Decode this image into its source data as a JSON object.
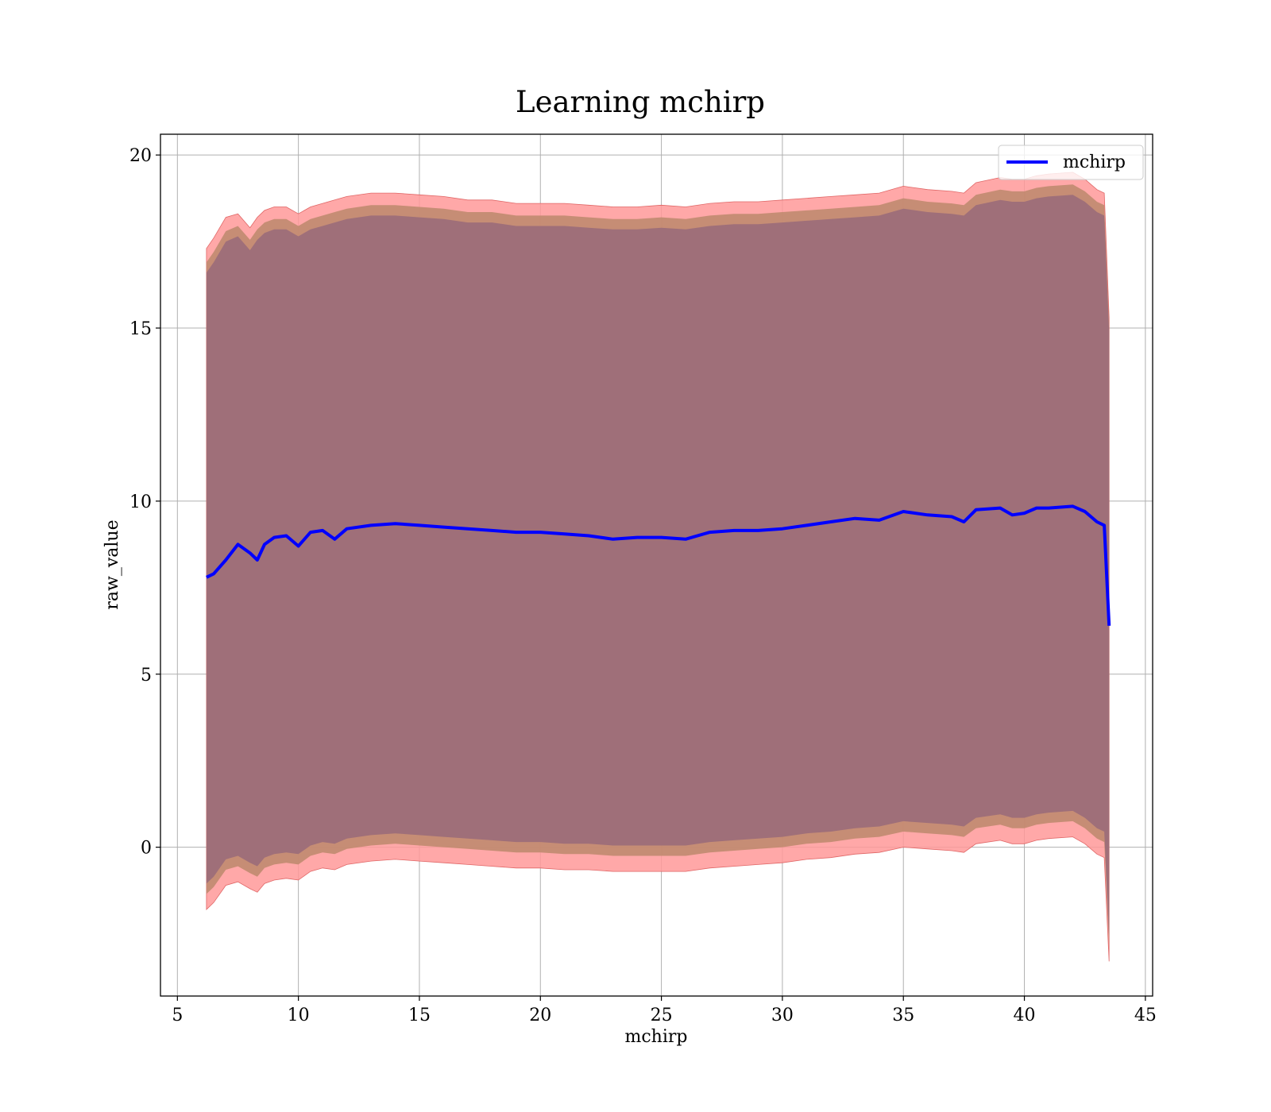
{
  "chart_data": {
    "type": "line",
    "title": "Learning mchirp",
    "xlabel": "mchirp",
    "ylabel": "raw_value",
    "xlim": [
      4.3,
      45.3
    ],
    "ylim": [
      -4.3,
      20.6
    ],
    "xticks": [
      5,
      10,
      15,
      20,
      25,
      30,
      35,
      40,
      45
    ],
    "yticks": [
      0,
      5,
      10,
      15,
      20
    ],
    "grid": true,
    "legend": {
      "placement": "top-right",
      "entries": [
        "mchirp"
      ]
    },
    "colors": {
      "line": "#0000ff",
      "outer_band": "#ff9999",
      "mid_band": "#c08a6f",
      "inner_band": "#9f6f79",
      "grid": "#b0b0b0"
    },
    "series": [
      {
        "name": "mchirp",
        "x": [
          6.2,
          6.5,
          7.0,
          7.5,
          8.0,
          8.3,
          8.6,
          9.0,
          9.5,
          10.0,
          10.5,
          11.0,
          11.5,
          12.0,
          13.0,
          14.0,
          15.0,
          16.0,
          17.0,
          18.0,
          19.0,
          20.0,
          21.0,
          22.0,
          23.0,
          24.0,
          25.0,
          26.0,
          27.0,
          28.0,
          29.0,
          30.0,
          31.0,
          32.0,
          33.0,
          34.0,
          35.0,
          36.0,
          37.0,
          37.5,
          38.0,
          39.0,
          39.5,
          40.0,
          40.5,
          41.0,
          42.0,
          42.5,
          43.0,
          43.3,
          43.5
        ],
        "y": [
          7.8,
          7.9,
          8.3,
          8.75,
          8.5,
          8.3,
          8.75,
          8.95,
          9.0,
          8.7,
          9.1,
          9.15,
          8.9,
          9.2,
          9.3,
          9.35,
          9.3,
          9.25,
          9.2,
          9.15,
          9.1,
          9.1,
          9.05,
          9.0,
          8.9,
          8.95,
          8.95,
          8.9,
          9.1,
          9.15,
          9.15,
          9.2,
          9.3,
          9.4,
          9.5,
          9.45,
          9.7,
          9.6,
          9.55,
          9.4,
          9.75,
          9.8,
          9.6,
          9.65,
          9.8,
          9.8,
          9.85,
          9.7,
          9.4,
          9.3,
          6.4
        ],
        "band_outer": {
          "upper": [
            17.3,
            17.6,
            18.2,
            18.3,
            17.9,
            18.2,
            18.4,
            18.5,
            18.5,
            18.3,
            18.5,
            18.6,
            18.7,
            18.8,
            18.9,
            18.9,
            18.85,
            18.8,
            18.7,
            18.7,
            18.6,
            18.6,
            18.6,
            18.55,
            18.5,
            18.5,
            18.55,
            18.5,
            18.6,
            18.65,
            18.65,
            18.7,
            18.75,
            18.8,
            18.85,
            18.9,
            19.1,
            19.0,
            18.95,
            18.9,
            19.2,
            19.35,
            19.3,
            19.3,
            19.4,
            19.45,
            19.5,
            19.3,
            19.0,
            18.9,
            15.3
          ],
          "lower": [
            -1.8,
            -1.6,
            -1.1,
            -1.0,
            -1.2,
            -1.3,
            -1.05,
            -0.95,
            -0.9,
            -0.95,
            -0.7,
            -0.6,
            -0.65,
            -0.5,
            -0.4,
            -0.35,
            -0.4,
            -0.45,
            -0.5,
            -0.55,
            -0.6,
            -0.6,
            -0.65,
            -0.65,
            -0.7,
            -0.7,
            -0.7,
            -0.7,
            -0.6,
            -0.55,
            -0.5,
            -0.45,
            -0.35,
            -0.3,
            -0.2,
            -0.15,
            0.0,
            -0.05,
            -0.1,
            -0.15,
            0.1,
            0.2,
            0.1,
            0.1,
            0.2,
            0.25,
            0.3,
            0.1,
            -0.2,
            -0.3,
            -3.3
          ]
        },
        "band_mid": {
          "upper": [
            16.9,
            17.2,
            17.8,
            17.95,
            17.55,
            17.85,
            18.05,
            18.15,
            18.15,
            17.95,
            18.15,
            18.25,
            18.35,
            18.45,
            18.55,
            18.55,
            18.5,
            18.45,
            18.35,
            18.35,
            18.25,
            18.25,
            18.25,
            18.2,
            18.15,
            18.15,
            18.2,
            18.15,
            18.25,
            18.3,
            18.3,
            18.35,
            18.4,
            18.45,
            18.5,
            18.55,
            18.75,
            18.65,
            18.6,
            18.55,
            18.85,
            19.0,
            18.95,
            18.95,
            19.05,
            19.1,
            19.15,
            18.95,
            18.65,
            18.55,
            15.1
          ],
          "lower": [
            -1.35,
            -1.15,
            -0.65,
            -0.55,
            -0.75,
            -0.85,
            -0.6,
            -0.5,
            -0.45,
            -0.5,
            -0.25,
            -0.15,
            -0.2,
            -0.05,
            0.05,
            0.1,
            0.05,
            0.0,
            -0.05,
            -0.1,
            -0.15,
            -0.15,
            -0.2,
            -0.2,
            -0.25,
            -0.25,
            -0.25,
            -0.25,
            -0.15,
            -0.1,
            -0.05,
            0.0,
            0.1,
            0.15,
            0.25,
            0.3,
            0.45,
            0.4,
            0.35,
            0.3,
            0.55,
            0.65,
            0.55,
            0.55,
            0.65,
            0.7,
            0.75,
            0.55,
            0.25,
            0.15,
            -2.9
          ]
        },
        "band_inner": {
          "upper": [
            16.6,
            16.9,
            17.5,
            17.65,
            17.25,
            17.55,
            17.75,
            17.85,
            17.85,
            17.65,
            17.85,
            17.95,
            18.05,
            18.15,
            18.25,
            18.25,
            18.2,
            18.15,
            18.05,
            18.05,
            17.95,
            17.95,
            17.95,
            17.9,
            17.85,
            17.85,
            17.9,
            17.85,
            17.95,
            18.0,
            18.0,
            18.05,
            18.1,
            18.15,
            18.2,
            18.25,
            18.45,
            18.35,
            18.3,
            18.25,
            18.55,
            18.7,
            18.65,
            18.65,
            18.75,
            18.8,
            18.85,
            18.65,
            18.35,
            18.25,
            14.9
          ],
          "lower": [
            -1.05,
            -0.85,
            -0.35,
            -0.25,
            -0.45,
            -0.55,
            -0.3,
            -0.2,
            -0.15,
            -0.2,
            0.05,
            0.15,
            0.1,
            0.25,
            0.35,
            0.4,
            0.35,
            0.3,
            0.25,
            0.2,
            0.15,
            0.15,
            0.1,
            0.1,
            0.05,
            0.05,
            0.05,
            0.05,
            0.15,
            0.2,
            0.25,
            0.3,
            0.4,
            0.45,
            0.55,
            0.6,
            0.75,
            0.7,
            0.65,
            0.6,
            0.85,
            0.95,
            0.85,
            0.85,
            0.95,
            1.0,
            1.05,
            0.85,
            0.55,
            0.45,
            -2.6
          ]
        }
      }
    ]
  }
}
